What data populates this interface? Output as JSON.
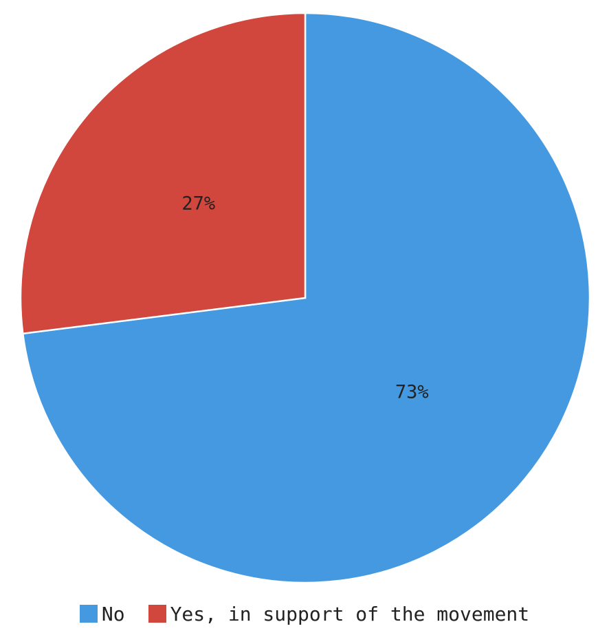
{
  "chart_data": {
    "type": "pie",
    "title": "",
    "slices": [
      {
        "name": "No",
        "value": 73,
        "label": "73%",
        "color": "#4499e0"
      },
      {
        "name": "Yes, in support of the movement",
        "value": 27,
        "label": "27%",
        "color": "#d2473d"
      }
    ],
    "legend": {
      "placement": "bottom",
      "items": [
        {
          "label": "No",
          "color": "#4499e0"
        },
        {
          "label": "Yes, in support of the movement",
          "color": "#d2473d"
        }
      ]
    }
  }
}
